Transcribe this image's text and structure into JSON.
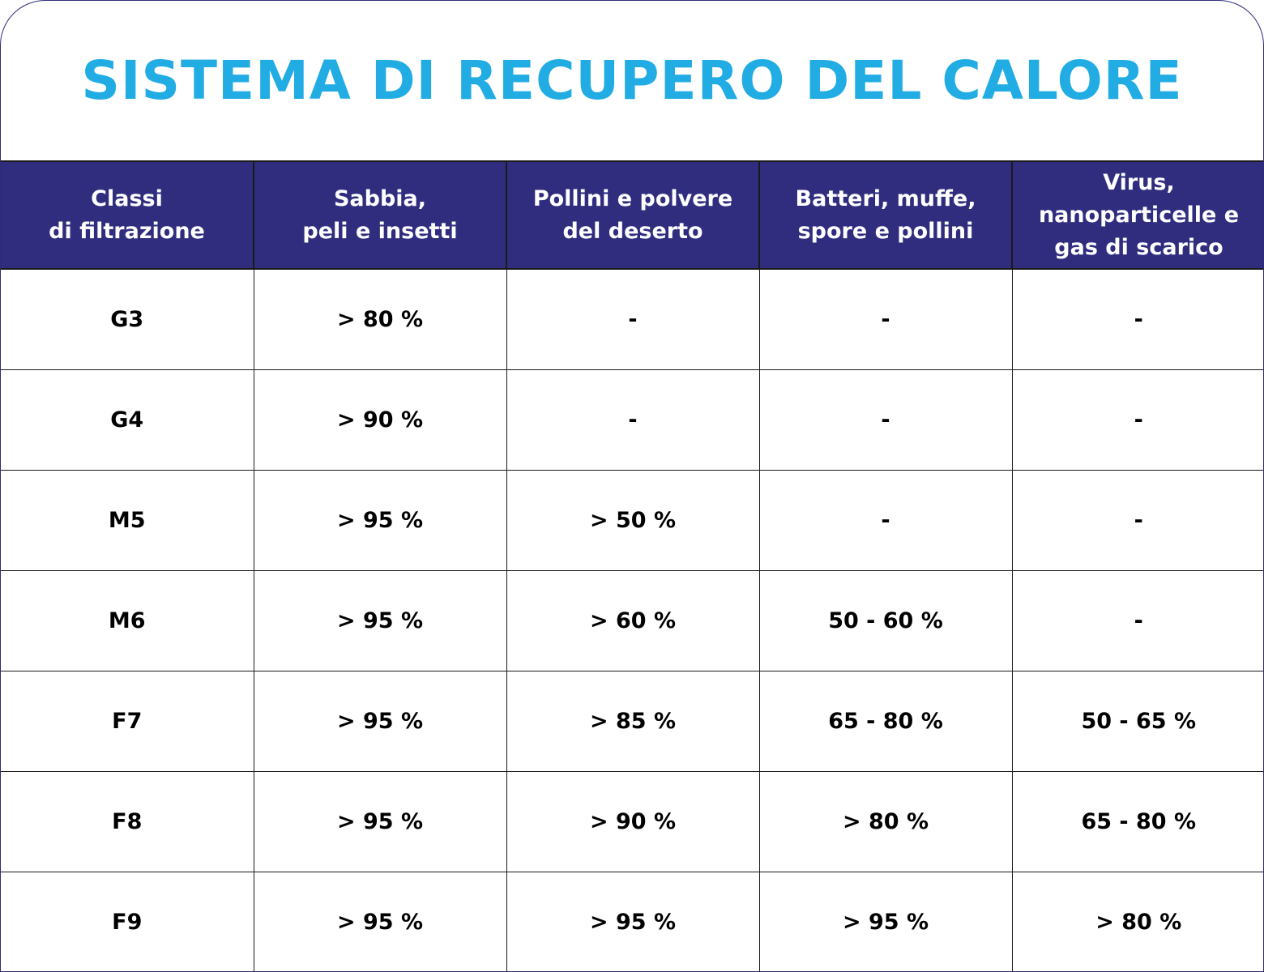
{
  "title": "SISTEMA DI RECUPERO DEL CALORE",
  "table": {
    "headers": [
      "Classi\ndi filtrazione",
      "Sabbia,\npeli e insetti",
      "Pollini e polvere\ndel deserto",
      "Batteri, muffe,\nspore e pollini",
      "Virus,\nnanoparticelle e\ngas di scarico"
    ],
    "rows": [
      [
        "G3",
        "> 80 %",
        "-",
        "-",
        "-"
      ],
      [
        "G4",
        "> 90 %",
        "-",
        "-",
        "-"
      ],
      [
        "M5",
        "> 95 %",
        "> 50 %",
        "-",
        "-"
      ],
      [
        "M6",
        "> 95 %",
        "> 60 %",
        "50 - 60 %",
        "-"
      ],
      [
        "F7",
        "> 95 %",
        "> 85 %",
        "65 - 80 %",
        "50 - 65 %"
      ],
      [
        "F8",
        "> 95 %",
        "> 90 %",
        "> 80 %",
        "65 - 80 %"
      ],
      [
        "F9",
        "> 95 %",
        "> 95 %",
        "> 95 %",
        "> 80 %"
      ]
    ]
  },
  "colors": {
    "title": "#22ace4",
    "header_bg": "#302d7f",
    "header_text": "#ffffff",
    "border": "#1a1a1a"
  }
}
